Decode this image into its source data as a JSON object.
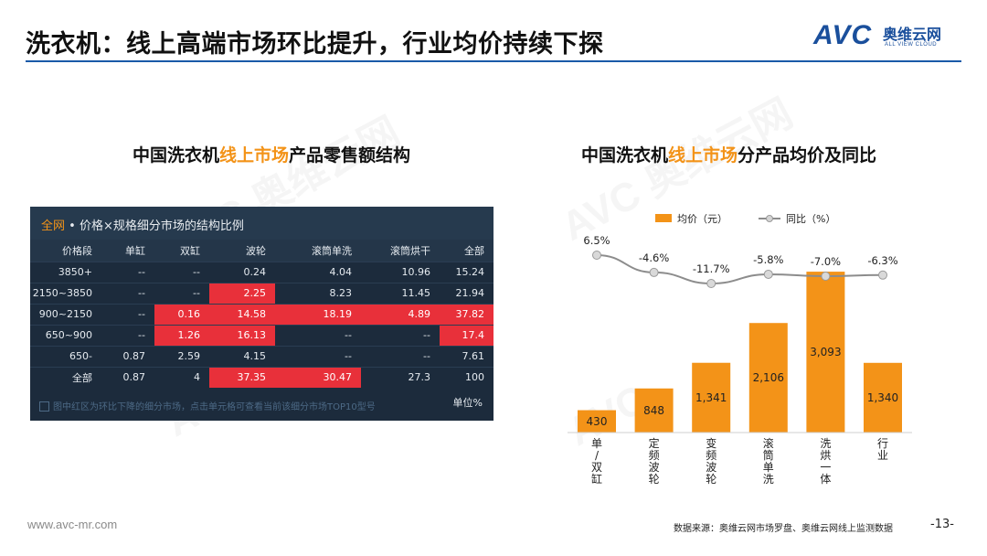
{
  "header": {
    "title": "洗衣机：线上高端市场环比提升，行业均价持续下探",
    "logo_mark": "AVC",
    "logo_cn": "奥维云网",
    "logo_en": "ALL VIEW CLOUD",
    "rule_color": "#1a5aa8"
  },
  "left_section": {
    "title_pre": "中国洗衣机",
    "title_hl": "线上市场",
    "title_post": "产品零售额结构",
    "panel": {
      "head_hl": "全网",
      "head_rest": " • 价格×规格细分市场的结构比例",
      "columns": [
        "价格段",
        "单缸",
        "双缸",
        "波轮",
        "滚筒单洗",
        "滚筒烘干",
        "全部"
      ],
      "rows": [
        {
          "cells": [
            "3850+",
            "--",
            "--",
            "0.24",
            "4.04",
            "10.96",
            "15.24"
          ],
          "red": []
        },
        {
          "cells": [
            "2150~3850",
            "--",
            "--",
            "2.25",
            "8.23",
            "11.45",
            "21.94"
          ],
          "red": [
            3
          ]
        },
        {
          "cells": [
            "900~2150",
            "--",
            "0.16",
            "14.58",
            "18.19",
            "4.89",
            "37.82"
          ],
          "red": [
            2,
            3,
            4,
            5,
            6
          ]
        },
        {
          "cells": [
            "650~900",
            "--",
            "1.26",
            "16.13",
            "--",
            "--",
            "17.4"
          ],
          "red": [
            2,
            3,
            6
          ]
        },
        {
          "cells": [
            "650-",
            "0.87",
            "2.59",
            "4.15",
            "--",
            "--",
            "7.61"
          ],
          "red": []
        },
        {
          "cells": [
            "全部",
            "0.87",
            "4",
            "37.35",
            "30.47",
            "27.3",
            "100"
          ],
          "red": [
            3,
            4
          ]
        }
      ],
      "footnote": "图中红区为环比下降的细分市场，点击单元格可查看当前该细分市场TOP10型号",
      "unit": "单位%"
    }
  },
  "right_section": {
    "title_pre": "中国洗衣机",
    "title_hl": "线上市场",
    "title_post": "分产品均价及同比"
  },
  "chart_data": {
    "type": "bar",
    "categories": [
      "单/双缸",
      "定频波轮",
      "变频波轮",
      "滚筒单洗",
      "洗烘一体",
      "行业"
    ],
    "series": [
      {
        "name": "均价（元）",
        "type": "bar",
        "values": [
          430,
          848,
          1341,
          2106,
          3093,
          1340
        ],
        "labels": [
          "430",
          "848",
          "1,341",
          "2,106",
          "3,093",
          "1,340"
        ],
        "color": "#f39318"
      },
      {
        "name": "同比（%）",
        "type": "line",
        "values": [
          6.5,
          -4.6,
          -11.7,
          -5.8,
          -7.0,
          -6.3
        ],
        "labels": [
          "6.5%",
          "-4.6%",
          "-11.7%",
          "-5.8%",
          "-7.0%",
          "-6.3%"
        ],
        "color": "#8c8c8c"
      }
    ],
    "legend_position": "top",
    "grid": false
  },
  "footer": {
    "url": "www.avc-mr.com",
    "source": "数据来源：奥维云网市场罗盘、奥维云网线上监测数据",
    "page": "-13-"
  }
}
